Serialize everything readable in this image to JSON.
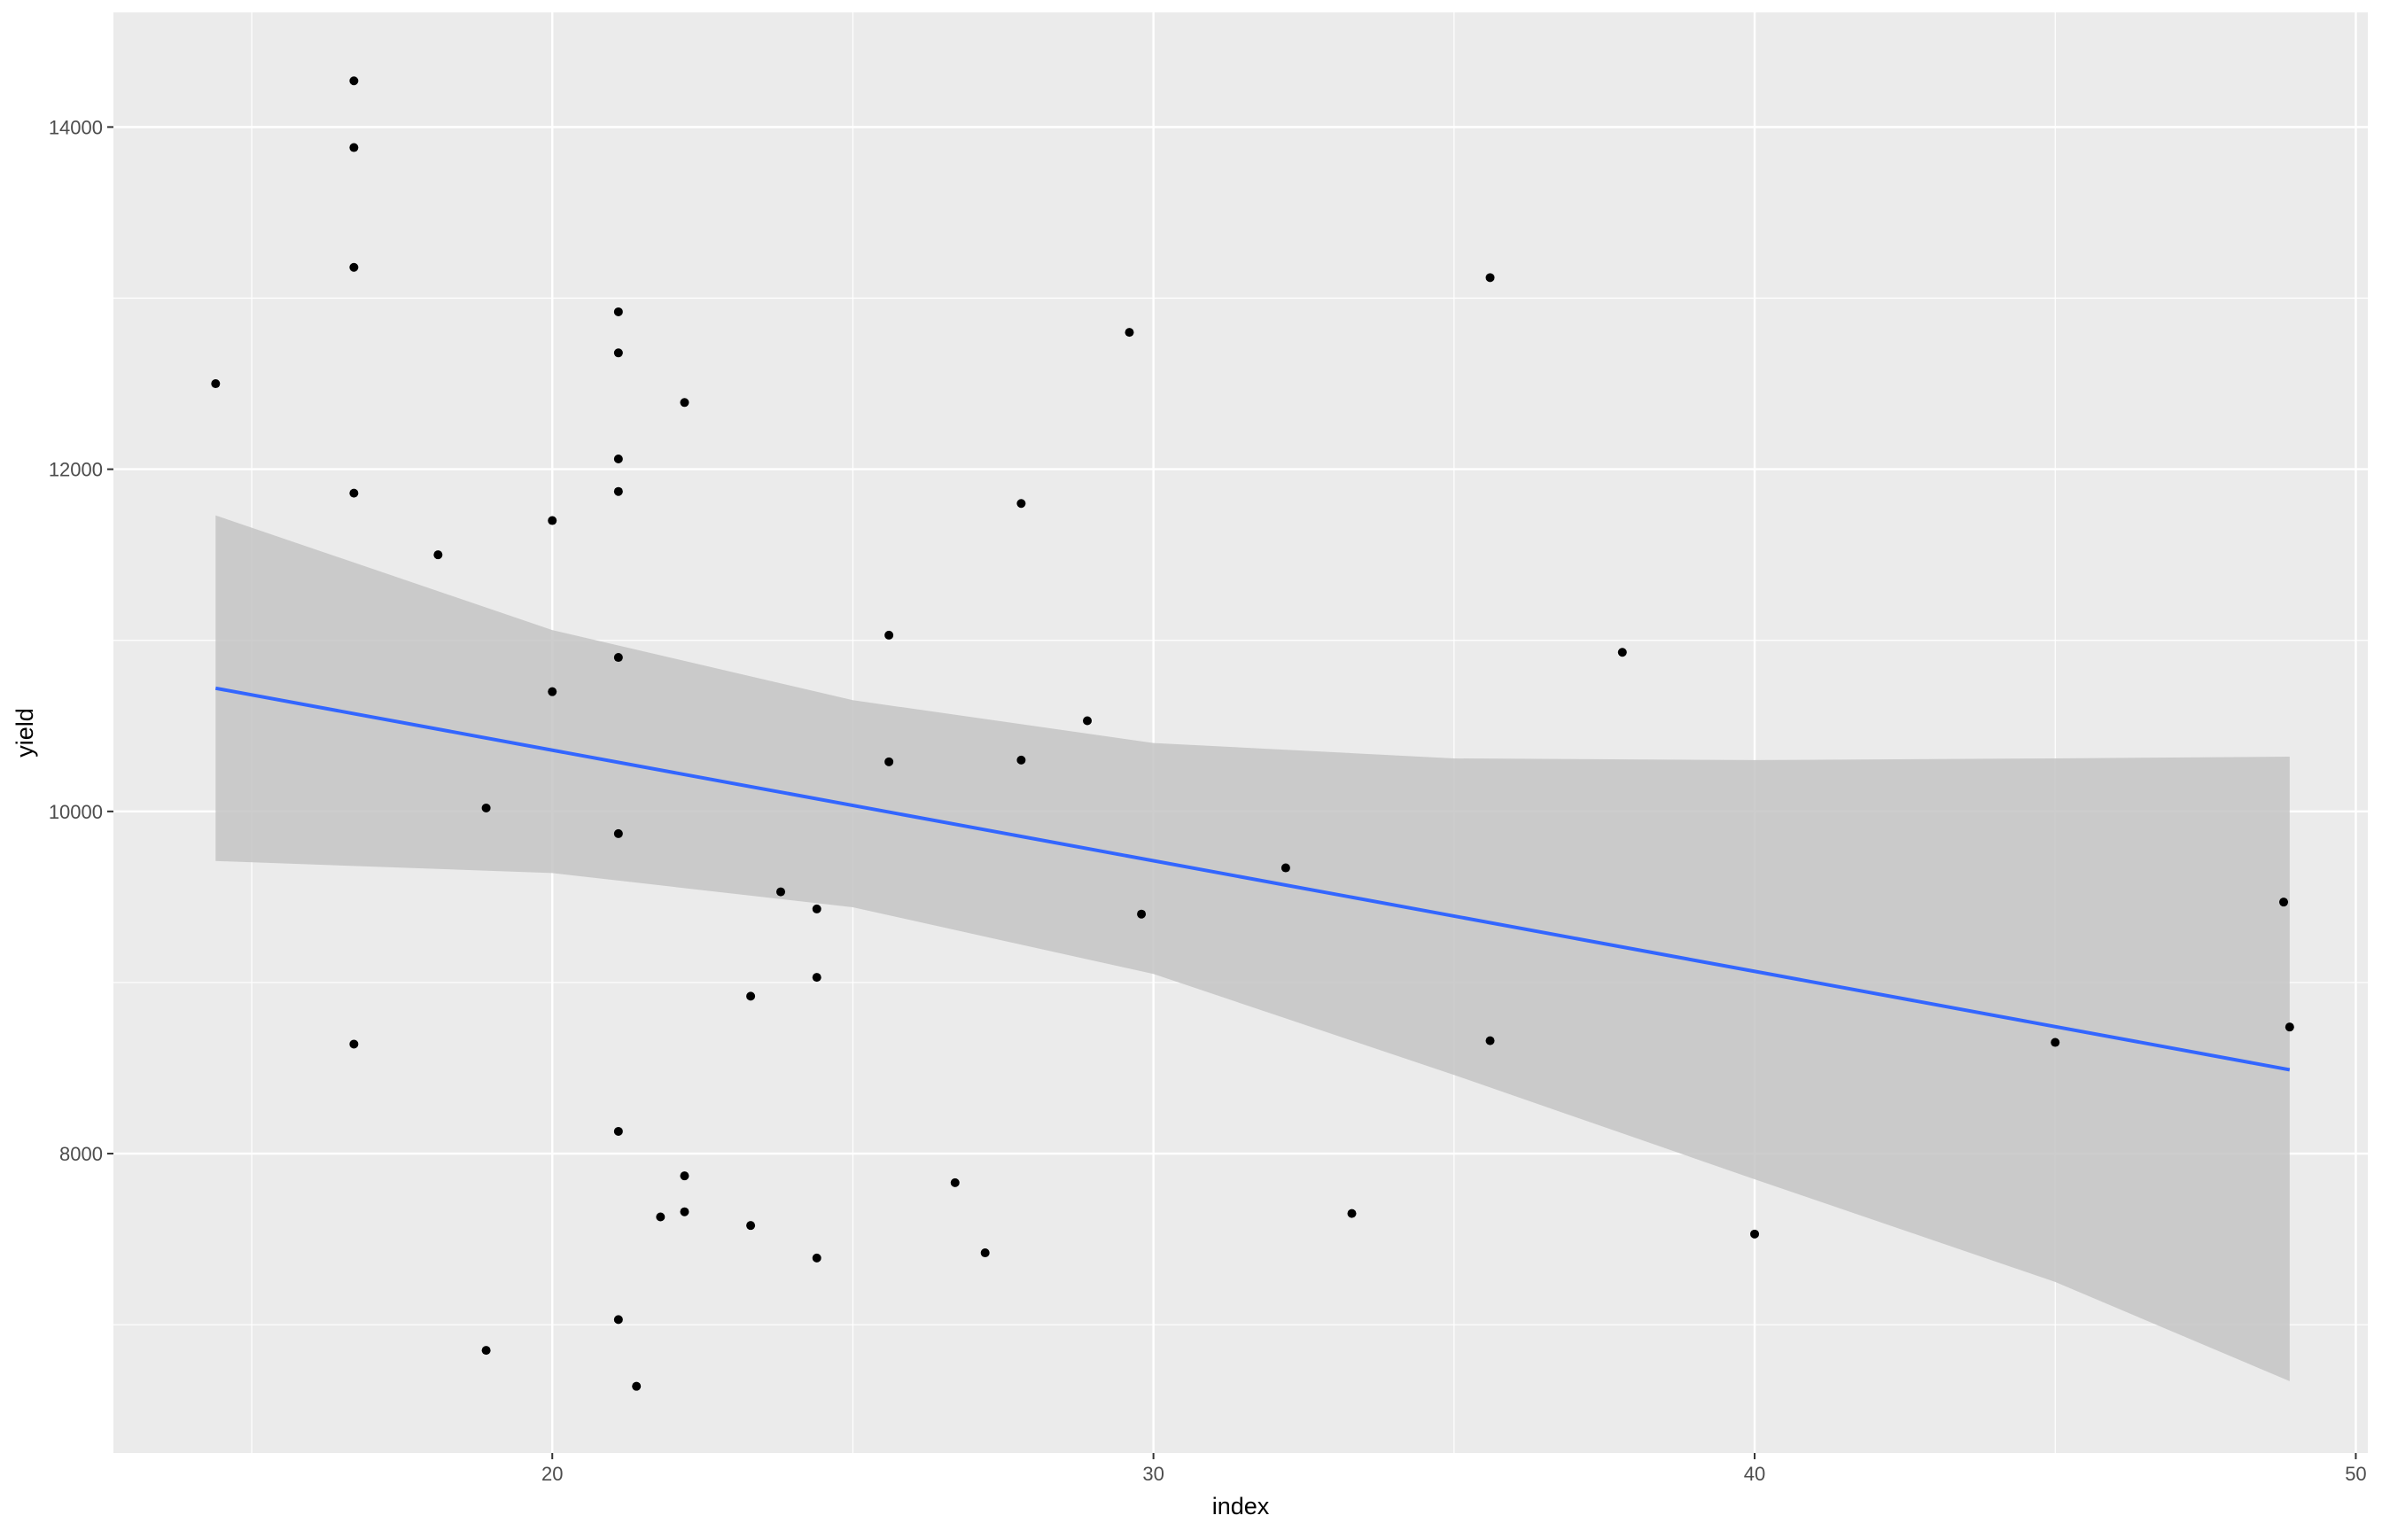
{
  "chart_data": {
    "type": "scatter",
    "title": "",
    "xlabel": "index",
    "ylabel": "yield",
    "xlim": [
      12.7,
      50.2
    ],
    "ylim": [
      6250,
      14670
    ],
    "x_ticks": [
      20,
      30,
      40,
      50
    ],
    "y_ticks": [
      8000,
      10000,
      12000,
      14000
    ],
    "x_minor": [
      15,
      25,
      35,
      45
    ],
    "y_minor": [
      7000,
      9000,
      11000,
      13000
    ],
    "grid": true,
    "legend": "none",
    "colors": {
      "panel_bg": "#ebebeb",
      "grid": "#ffffff",
      "points": "#000000",
      "trend_line": "#3366ff",
      "ribbon": "#c4c4c4"
    },
    "points": {
      "x": [
        14.4,
        16.7,
        16.7,
        16.7,
        16.7,
        16.7,
        18.1,
        18.9,
        18.9,
        20.0,
        20.0,
        21.1,
        21.1,
        21.1,
        21.1,
        21.1,
        21.1,
        21.1,
        21.1,
        21.4,
        21.8,
        22.2,
        22.2,
        22.2,
        23.3,
        23.3,
        23.8,
        24.4,
        24.4,
        24.4,
        25.6,
        25.6,
        26.7,
        27.2,
        27.8,
        27.8,
        28.9,
        29.6,
        29.8,
        32.2,
        33.3,
        35.6,
        35.6,
        37.8,
        40.0,
        45.0,
        48.8,
        48.9
      ],
      "y": [
        12500,
        14270,
        13880,
        13180,
        11860,
        8640,
        11500,
        10020,
        6850,
        11700,
        10700,
        12920,
        12680,
        12060,
        11870,
        10900,
        9870,
        8130,
        7030,
        6640,
        7630,
        12390,
        7870,
        7660,
        8920,
        7580,
        9530,
        9430,
        9030,
        7390,
        11030,
        10290,
        7830,
        7420,
        11800,
        10300,
        10530,
        12800,
        9400,
        9670,
        7650,
        13120,
        8660,
        10930,
        7530,
        8650,
        9470,
        8740
      ]
    },
    "trend_line": {
      "x": [
        14.4,
        48.9
      ],
      "y": [
        10720,
        8490
      ]
    },
    "confidence_band": {
      "x": [
        14.4,
        20.0,
        25.0,
        30.0,
        35.0,
        40.0,
        45.0,
        48.9
      ],
      "upper": [
        11730,
        11060,
        10650,
        10400,
        10310,
        10300,
        10310,
        10320
      ],
      "lower": [
        9710,
        9640,
        9440,
        9050,
        8460,
        7850,
        7250,
        6670
      ]
    }
  }
}
